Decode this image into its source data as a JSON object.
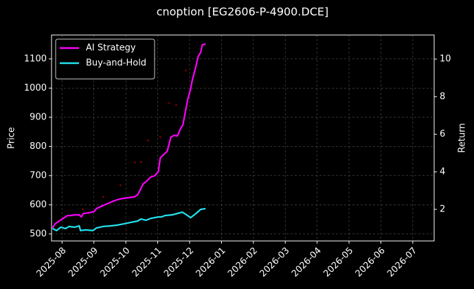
{
  "chart_data": {
    "type": "line",
    "title": "cnoption [EG2606-P-4900.DCE]",
    "ylabel": "Price",
    "y2label": "Return",
    "xlim": [
      -0.33,
      11.67
    ],
    "xticks": [
      {
        "value": 0,
        "label": "2025-08"
      },
      {
        "value": 1,
        "label": "2025-09"
      },
      {
        "value": 2,
        "label": "2025-10"
      },
      {
        "value": 3,
        "label": "2025-11"
      },
      {
        "value": 4,
        "label": "2025-12"
      },
      {
        "value": 5,
        "label": "2026-01"
      },
      {
        "value": 6,
        "label": "2026-02"
      },
      {
        "value": 7,
        "label": "2026-03"
      },
      {
        "value": 8,
        "label": "2026-04"
      },
      {
        "value": 9,
        "label": "2026-05"
      },
      {
        "value": 10,
        "label": "2026-06"
      },
      {
        "value": 11,
        "label": "2026-07"
      }
    ],
    "ylim": [
      476,
      1182
    ],
    "yticks": [
      500,
      600,
      700,
      800,
      900,
      1000,
      1100
    ],
    "y2lim": [
      0.32,
      11.28
    ],
    "y2ticks": [
      2,
      4,
      6,
      8,
      10
    ],
    "grid": true,
    "legend": "upper left",
    "series": [
      {
        "name": "AI Strategy",
        "color": "#ff00ff",
        "axis": "y2",
        "x": [
          -0.3,
          -0.22,
          -0.09,
          0.04,
          0.17,
          0.28,
          0.39,
          0.54,
          0.6,
          0.67,
          0.86,
          1.01,
          1.08,
          1.25,
          1.4,
          1.55,
          1.72,
          1.9,
          2.07,
          2.26,
          2.37,
          2.46,
          2.54,
          2.67,
          2.78,
          2.91,
          3.02,
          3.08,
          3.19,
          3.3,
          3.41,
          3.51,
          3.62,
          3.71,
          3.79,
          3.88,
          3.94,
          4.03,
          4.09,
          4.18,
          4.27,
          4.35,
          4.4,
          4.5
        ],
        "values": [
          1.01,
          1.23,
          1.38,
          1.53,
          1.67,
          1.67,
          1.71,
          1.71,
          1.6,
          1.78,
          1.82,
          1.89,
          2.04,
          2.18,
          2.29,
          2.4,
          2.51,
          2.58,
          2.62,
          2.66,
          2.77,
          3.06,
          3.35,
          3.53,
          3.72,
          3.79,
          4.01,
          4.74,
          4.92,
          5.1,
          5.83,
          5.94,
          5.91,
          6.27,
          6.49,
          7.29,
          7.84,
          8.39,
          8.93,
          9.48,
          10.14,
          10.36,
          10.76,
          10.8
        ]
      },
      {
        "name": "Buy-and-Hold",
        "color": "#22e5f0",
        "axis": "y2",
        "x": [
          -0.3,
          -0.17,
          -0.04,
          0.11,
          0.22,
          0.39,
          0.54,
          0.58,
          0.75,
          0.97,
          1.08,
          1.29,
          1.51,
          1.72,
          1.94,
          2.16,
          2.37,
          2.48,
          2.63,
          2.8,
          3.02,
          3.12,
          3.23,
          3.45,
          3.62,
          3.77,
          3.88,
          4.03,
          4.2,
          4.35,
          4.5
        ],
        "values": [
          0.98,
          0.87,
          1.05,
          0.98,
          1.09,
          1.05,
          1.12,
          0.87,
          0.91,
          0.87,
          1.01,
          1.09,
          1.12,
          1.16,
          1.23,
          1.31,
          1.38,
          1.49,
          1.42,
          1.53,
          1.6,
          1.6,
          1.67,
          1.71,
          1.78,
          1.85,
          1.74,
          1.56,
          1.78,
          2.0,
          2.04
        ]
      },
      {
        "color": "#8b0000",
        "axis": "y",
        "marker": "dot",
        "x": [
          0.65,
          1.29,
          1.83,
          2.28,
          2.48,
          2.69,
          3.08,
          3.36,
          3.58,
          3.88
        ],
        "values": [
          585,
          627,
          667,
          745,
          747,
          820,
          832,
          949,
          942,
          1060
        ]
      }
    ]
  }
}
